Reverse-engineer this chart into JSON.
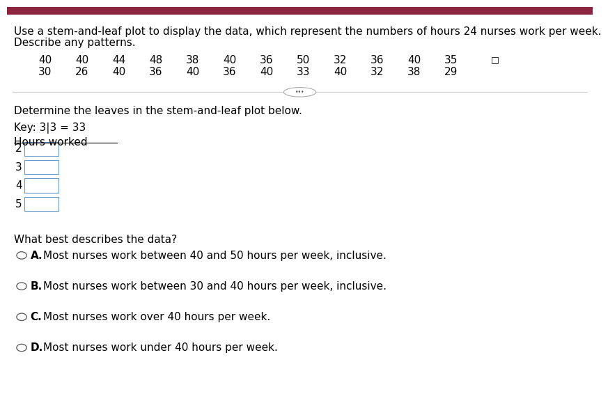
{
  "title_line1": "Use a stem-and-leaf plot to display the data, which represent the numbers of hours 24 nurses work per week.",
  "title_line2": "Describe any patterns.",
  "data_row1": [
    40,
    40,
    44,
    48,
    38,
    40,
    36,
    50,
    32,
    36,
    40,
    35
  ],
  "data_row2": [
    30,
    26,
    40,
    36,
    40,
    36,
    40,
    33,
    40,
    32,
    38,
    29
  ],
  "header_bar_color": "#8B2540",
  "divider_color": "#cccccc",
  "section_label": "Determine the leaves in the stem-and-leaf plot below.",
  "key_text": "Key: 3|3 = 33",
  "plot_title": "Hours worked",
  "stems": [
    "2",
    "3",
    "4",
    "5"
  ],
  "question_text": "What best describes the data?",
  "options": [
    {
      "letter": "A.",
      "text": "Most nurses work between 40 and 50 hours per week, inclusive."
    },
    {
      "letter": "B.",
      "text": "Most nurses work between 30 and 40 hours per week, inclusive."
    },
    {
      "letter": "C.",
      "text": "Most nurses work over 40 hours per week."
    },
    {
      "letter": "D.",
      "text": "Most nurses work under 40 hours per week."
    }
  ],
  "bg_color": "#ffffff",
  "text_color": "#000000",
  "font_size": 11,
  "small_font": 10
}
